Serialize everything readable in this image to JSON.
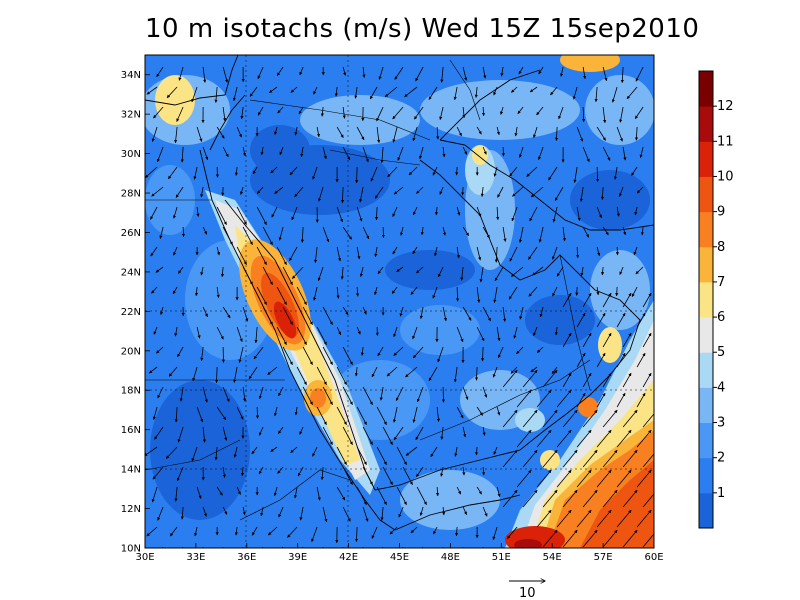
{
  "title": "10 m isotachs (m/s) Wed 15Z 15sep2010",
  "map": {
    "lon_range": [
      30,
      60
    ],
    "lat_range": [
      10,
      35
    ],
    "x_ticks": [
      "30E",
      "33E",
      "36E",
      "39E",
      "42E",
      "45E",
      "48E",
      "51E",
      "54E",
      "57E",
      "60E"
    ],
    "y_ticks": [
      "10N",
      "12N",
      "14N",
      "16N",
      "18N",
      "20N",
      "22N",
      "24N",
      "26N",
      "28N",
      "30N",
      "32N",
      "34N"
    ]
  },
  "colorbar": {
    "labels": [
      "1",
      "2",
      "3",
      "4",
      "5",
      "6",
      "7",
      "8",
      "9",
      "10",
      "11",
      "12"
    ],
    "colors": [
      "#1a63d9",
      "#2b7ef0",
      "#4a98f5",
      "#78b6f5",
      "#a9d9f5",
      "#e8e8e8",
      "#fbe486",
      "#fbb43a",
      "#f98020",
      "#ee5511",
      "#d92208",
      "#a80b0b",
      "#7a0000"
    ]
  },
  "reference_vector": {
    "label": "10"
  }
}
